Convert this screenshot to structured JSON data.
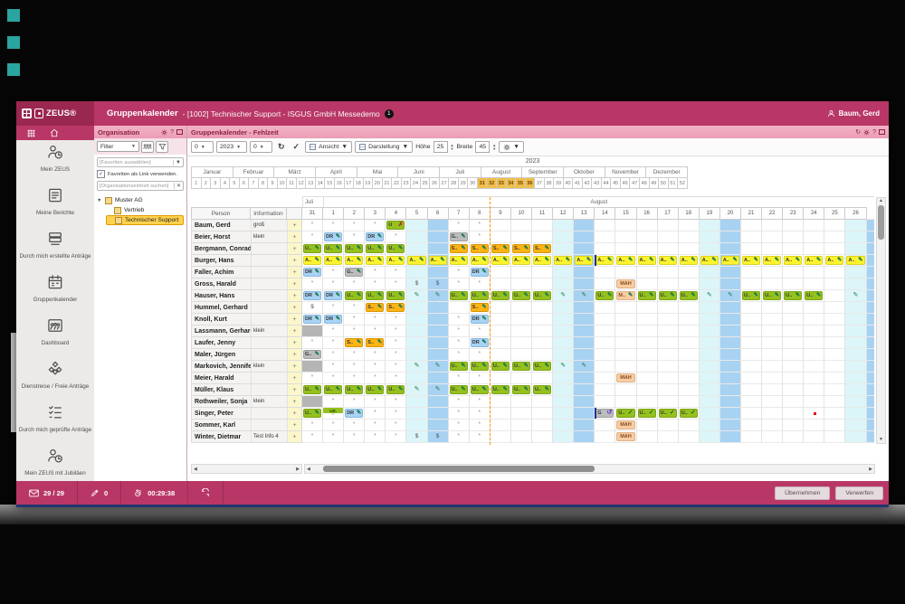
{
  "titlebar": {
    "product": "ZEUS®",
    "title_main": "Gruppenkalender",
    "title_sub": "- [1002] Technischer Support - ISGUS GmbH Messedemo",
    "badge": "1",
    "user": "Baum, Gerd"
  },
  "sidebar": {
    "items": [
      {
        "label": "Mein ZEUS",
        "icon": "person-clock-icon"
      },
      {
        "label": "Meine Berichte",
        "icon": "report-icon"
      },
      {
        "label": "Durch mich erstellte Anträge",
        "icon": "tray-stack-icon"
      },
      {
        "label": "Gruppenkalender",
        "icon": "calendar-icon"
      },
      {
        "label": "Dashboard",
        "icon": "people-group-icon"
      },
      {
        "label": "Dienstreise / Freie Anträge",
        "icon": "cubes-icon"
      },
      {
        "label": "Durch mich geprüfte Anträge",
        "icon": "checklist-icon"
      },
      {
        "label": "Mein ZEUS mit Jubiläen",
        "icon": "person-clock-icon"
      }
    ]
  },
  "org": {
    "panel_title": "Organisation",
    "filter_label": "Filter",
    "favorites_placeholder": "[Favoriten auswählen]",
    "favorites_link_label": "Favoriten als Link verwenden.",
    "search_placeholder": "[Organisationseinheit suchen]",
    "tree": [
      {
        "label": "Muster AG",
        "level": 0,
        "expanded": true,
        "selected": false
      },
      {
        "label": "Vertrieb",
        "level": 1,
        "expanded": false,
        "selected": false
      },
      {
        "label": "Technischer Support",
        "level": 1,
        "expanded": false,
        "selected": true
      }
    ]
  },
  "calendar": {
    "panel_title": "Gruppenkalender - Fehlzeit",
    "toolbar": {
      "month_value": "0",
      "year_value": "2023",
      "offset_value": "0",
      "ansicht_label": "Ansicht",
      "darstellung_label": "Darstellung",
      "hoehe_label": "Höhe",
      "hoehe_value": "25",
      "breite_label": "Breite",
      "breite_value": "45"
    },
    "year": "2023",
    "months": [
      "Januar",
      "Februar",
      "März",
      "April",
      "Mai",
      "Juni",
      "Juli",
      "August",
      "September",
      "Oktober",
      "November",
      "Dezember"
    ],
    "weeks": [
      1,
      2,
      3,
      4,
      5,
      6,
      7,
      8,
      9,
      10,
      11,
      12,
      13,
      14,
      15,
      16,
      17,
      18,
      19,
      20,
      21,
      22,
      23,
      24,
      25,
      26,
      27,
      28,
      29,
      30,
      31,
      32,
      33,
      34,
      35,
      36,
      37,
      38,
      39,
      40,
      41,
      42,
      43,
      44,
      45,
      46,
      47,
      48,
      49,
      50,
      51,
      52
    ],
    "highlighted_weeks": [
      31,
      32,
      33,
      34,
      35,
      36
    ],
    "visible_months": [
      {
        "label": "Juli",
        "cols": 1
      },
      {
        "label": "August",
        "cols": 26
      }
    ],
    "col_person": "Person",
    "col_info": "Information",
    "plus_label": "+",
    "day_headers": [
      "31",
      "1",
      "2",
      "3",
      "4",
      "5",
      "6",
      "7",
      "8",
      "9",
      "10",
      "11",
      "12",
      "13",
      "14",
      "15",
      "16",
      "17",
      "18",
      "19",
      "20",
      "21",
      "22",
      "23",
      "24",
      "25",
      "26"
    ],
    "saturdays": [
      5,
      12,
      19,
      26
    ],
    "sundays": [
      6,
      13,
      20
    ],
    "cell_types": {
      "a": {
        "label": "*"
      },
      "$": {
        "label": "$"
      },
      "U": {
        "label": "U..",
        "glyph": "pencil",
        "color": "green"
      },
      "Uc": {
        "label": "U..",
        "glyph": "check",
        "color": "green"
      },
      "Ur": {
        "label": "U",
        "glyph": "red",
        "color": "green"
      },
      "A": {
        "label": "A..",
        "glyph": "pencil",
        "color": "yellow"
      },
      "Ab": {
        "label": "A..",
        "glyph": "pencil",
        "color": "yellow",
        "bar": true
      },
      "DR": {
        "label": "DR",
        "glyph": "pencil",
        "color": "blue"
      },
      "S": {
        "label": "S..",
        "glyph": "pencil",
        "color": "orange"
      },
      "G": {
        "label": "G..",
        "glyph": "pencil",
        "color": "graych"
      },
      "Gp": {
        "label": "G",
        "glyph": "undo",
        "color": "graych",
        "bar": true
      },
      "M": {
        "label": "M..",
        "glyph": "pencil",
        "color": "peach"
      },
      "MAH": {
        "label": "MAH",
        "color": "peach"
      },
      "URa": {
        "label": "UR.",
        "sub": "*"
      },
      "gray": {},
      "p": {
        "glyph": "pencil"
      },
      "red": {}
    },
    "rows": [
      {
        "name": "Baum, Gerd",
        "info": "groß",
        "cells": {
          "0": "a",
          "1": "a",
          "2": "a",
          "3": "a",
          "4": "Ur",
          "7": "a",
          "8": "a"
        }
      },
      {
        "name": "Beier, Horst",
        "info": "klein",
        "cells": {
          "0": "a",
          "1": "DR",
          "2": "a",
          "3": "DR",
          "4": "a",
          "7": "G",
          "8": "a"
        }
      },
      {
        "name": "Bergmann, Conrad",
        "info": "",
        "cells": {
          "0": "U",
          "1": "U",
          "2": "U",
          "3": "U",
          "4": "U",
          "7": "S",
          "8": "S",
          "9": "S",
          "10": "S",
          "11": "S"
        }
      },
      {
        "name": "Burger, Hans",
        "info": "",
        "cells": {
          "0": "A",
          "1": "A",
          "2": "A",
          "3": "A",
          "4": "A",
          "5": "A",
          "6": "A",
          "7": "A",
          "8": "A",
          "9": "A",
          "10": "A",
          "11": "A",
          "12": "A",
          "13": "A",
          "14": "Ab",
          "15": "A",
          "16": "A",
          "17": "A",
          "18": "A",
          "19": "A",
          "20": "A",
          "21": "A",
          "22": "A",
          "23": "A",
          "24": "A",
          "25": "A",
          "26": "A"
        }
      },
      {
        "name": "Faller, Achim",
        "info": "",
        "cells": {
          "0": "DR",
          "1": "a",
          "2": "G",
          "3": "a",
          "4": "a",
          "7": "a",
          "8": "DR"
        }
      },
      {
        "name": "Gross, Harald",
        "info": "",
        "cells": {
          "0": "a",
          "1": "a",
          "2": "a",
          "3": "a",
          "4": "a",
          "5": "$",
          "6": "$",
          "7": "a",
          "8": "a",
          "15": "MAH"
        }
      },
      {
        "name": "Hauser, Hans",
        "info": "",
        "cells": {
          "0": "DR",
          "1": "DR",
          "2": "U",
          "3": "U",
          "4": "U",
          "5": "p",
          "6": "p",
          "7": "U",
          "8": "U",
          "9": "U",
          "10": "U",
          "11": "U",
          "12": "p",
          "13": "p",
          "14": "U",
          "15": "M",
          "16": "U",
          "17": "U",
          "18": "U",
          "19": "p",
          "20": "p",
          "21": "U",
          "22": "U",
          "23": "U",
          "24": "U",
          "26": "p"
        }
      },
      {
        "name": "Hummel, Gerhard",
        "info": "",
        "cells": {
          "0": "$",
          "1": "a",
          "2": "a",
          "3": "S",
          "4": "S",
          "8": "S"
        }
      },
      {
        "name": "Knoll, Kurt",
        "info": "",
        "cells": {
          "0": "DR",
          "1": "DR",
          "2": "a",
          "3": "a",
          "4": "a",
          "7": "a",
          "8": "DR"
        }
      },
      {
        "name": "Lassmann, Gerhardt",
        "info": "klein",
        "cells": {
          "0": "gray",
          "1": "a",
          "2": "a",
          "3": "a",
          "4": "a",
          "7": "a",
          "8": "a"
        }
      },
      {
        "name": "Laufer, Jenny",
        "info": "",
        "cells": {
          "0": "a",
          "1": "a",
          "2": "S",
          "3": "S",
          "4": "a",
          "7": "a",
          "8": "DR"
        }
      },
      {
        "name": "Maler, Jürgen",
        "info": "",
        "cells": {
          "0": "G",
          "1": "a",
          "2": "a",
          "3": "a",
          "4": "a",
          "7": "a",
          "8": "a"
        }
      },
      {
        "name": "Markovich, Jennifer",
        "info": "klein",
        "cells": {
          "0": "gray",
          "1": "a",
          "2": "a",
          "3": "a",
          "4": "a",
          "5": "p",
          "6": "p",
          "7": "U",
          "8": "U",
          "9": "U",
          "10": "U",
          "11": "U",
          "12": "p",
          "13": "p"
        }
      },
      {
        "name": "Meier, Harald",
        "info": "",
        "cells": {
          "0": "a",
          "1": "a",
          "2": "a",
          "3": "a",
          "4": "a",
          "7": "a",
          "8": "a",
          "15": "MAH"
        }
      },
      {
        "name": "Müller, Klaus",
        "info": "",
        "cells": {
          "0": "U",
          "1": "U",
          "2": "U",
          "3": "U",
          "4": "U",
          "5": "p",
          "6": "p",
          "7": "U",
          "8": "U",
          "9": "U",
          "10": "U",
          "11": "U"
        }
      },
      {
        "name": "Rothweiler, Sonja",
        "info": "klein",
        "cells": {
          "0": "gray",
          "1": "a",
          "2": "a",
          "3": "a",
          "4": "a",
          "7": "a",
          "8": "a"
        }
      },
      {
        "name": "Singer, Peter",
        "info": "",
        "cells": {
          "0": "U",
          "1": "URa",
          "2": "DR",
          "3": "a",
          "4": "a",
          "7": "a",
          "8": "a",
          "14": "Gp",
          "15": "Uc",
          "16": "Uc",
          "17": "Uc",
          "18": "Uc",
          "24": "red"
        }
      },
      {
        "name": "Sommer, Karl",
        "info": "",
        "cells": {
          "0": "a",
          "1": "a",
          "2": "a",
          "3": "a",
          "4": "a",
          "7": "a",
          "8": "a",
          "15": "MAH"
        }
      },
      {
        "name": "Winter, Dietmar",
        "info": "Test Info 4",
        "cells": {
          "0": "a",
          "1": "a",
          "2": "a",
          "3": "a",
          "4": "a",
          "5": "$",
          "6": "$",
          "7": "a",
          "8": "a",
          "15": "MAH"
        }
      }
    ]
  },
  "statusbar": {
    "mail_count": "29 / 29",
    "edit_count": "0",
    "timer": "00:29:38",
    "apply_label": "Übernehmen",
    "discard_label": "Verwerfen"
  }
}
